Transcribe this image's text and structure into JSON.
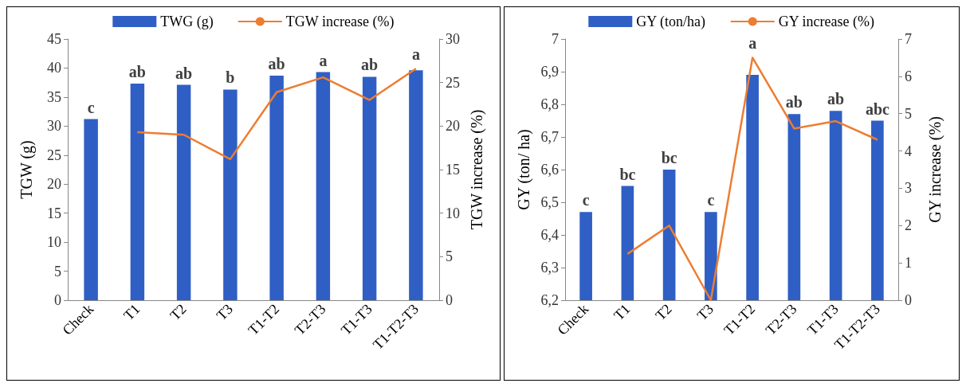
{
  "chart_data": [
    {
      "type": "bar",
      "categories": [
        "Check",
        "T1",
        "T2",
        "T3",
        "T1-T2",
        "T2-T3",
        "T1-T3",
        "T1-T2-T3"
      ],
      "ylabel": "TGW (g)",
      "y2label": "TGW increase (%)",
      "ylim": [
        0,
        45
      ],
      "yticks": [
        0,
        5,
        10,
        15,
        20,
        25,
        30,
        35,
        40,
        45
      ],
      "y2lim": [
        0,
        30
      ],
      "y2ticks": [
        0,
        5,
        10,
        15,
        20,
        25,
        30
      ],
      "legend": "top",
      "grid": false,
      "marker": "none",
      "series": [
        {
          "name": "TWG (g)",
          "type": "bar",
          "color": "#2f5fc4",
          "values": [
            31.2,
            37.3,
            37.1,
            36.3,
            38.7,
            39.3,
            38.5,
            39.6
          ],
          "value_labels": [
            "c",
            "ab",
            "ab",
            "b",
            "ab",
            "a",
            "ab",
            "a"
          ]
        },
        {
          "name": "TGW increase (%)",
          "type": "line",
          "axis": "y2",
          "color": "#ed7d31",
          "values": [
            null,
            19.3,
            19.0,
            16.2,
            23.9,
            25.6,
            23.0,
            26.6
          ]
        }
      ]
    },
    {
      "type": "bar",
      "categories": [
        "Check",
        "T1",
        "T2",
        "T3",
        "T1-T2",
        "T2-T3",
        "T1-T3",
        "T1-T2-T3"
      ],
      "ylabel": "GY (ton/ ha)",
      "y2label": "GY increase (%)",
      "ylim": [
        6.2,
        7
      ],
      "yticks": [
        {
          "value": 6.2,
          "label": "6,2"
        },
        {
          "value": 6.3,
          "label": "6,3"
        },
        {
          "value": 6.4,
          "label": "6,4"
        },
        {
          "value": 6.5,
          "label": "6,5"
        },
        {
          "value": 6.6,
          "label": "6,6"
        },
        {
          "value": 6.7,
          "label": "6,7"
        },
        {
          "value": 6.8,
          "label": "6,8"
        },
        {
          "value": 6.9,
          "label": "6,9"
        },
        7
      ],
      "y2lim": [
        0,
        7
      ],
      "y2ticks": [
        0,
        1,
        2,
        3,
        4,
        5,
        6,
        7
      ],
      "legend": "top",
      "grid": false,
      "marker": "none",
      "series": [
        {
          "name": "GY (ton/ha)",
          "type": "bar",
          "color": "#2f5fc4",
          "values": [
            6.47,
            6.55,
            6.6,
            6.47,
            6.89,
            6.77,
            6.78,
            6.75
          ],
          "value_labels": [
            "c",
            "bc",
            "bc",
            "c",
            "a",
            "ab",
            "ab",
            "abc"
          ]
        },
        {
          "name": "GY increase (%)",
          "type": "line",
          "axis": "y2",
          "color": "#ed7d31",
          "values": [
            null,
            1.24,
            2.0,
            0,
            6.5,
            4.6,
            4.8,
            4.3
          ]
        }
      ]
    }
  ]
}
